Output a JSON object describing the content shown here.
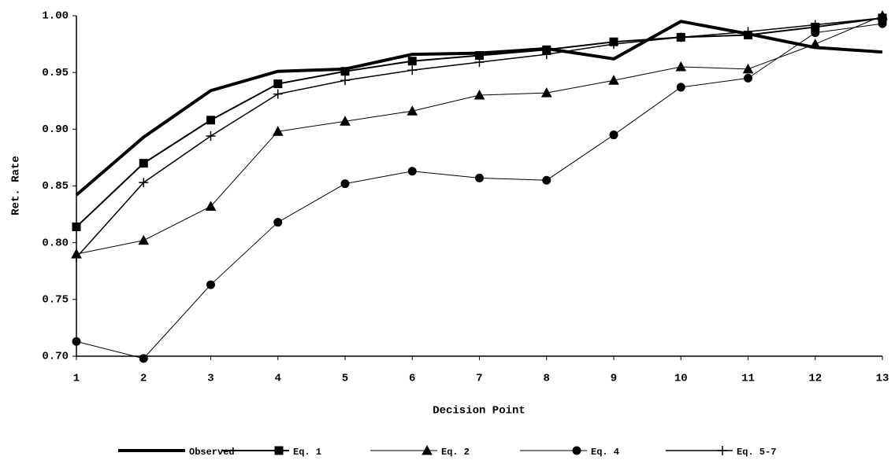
{
  "chart_data": {
    "type": "line",
    "x_label": "Decision Point",
    "y_label": "Ret. Rate",
    "x": [
      1,
      2,
      3,
      4,
      5,
      6,
      7,
      8,
      9,
      10,
      11,
      12,
      13
    ],
    "xlim": [
      1,
      13
    ],
    "xticks": [
      1,
      2,
      3,
      4,
      5,
      6,
      7,
      8,
      9,
      10,
      11,
      12,
      13
    ],
    "ylim": [
      0.7,
      1.0
    ],
    "yticks": [
      {
        "value": 0.7,
        "label": "0.70"
      },
      0.75,
      {
        "value": 0.8,
        "label": "0.80"
      },
      0.85,
      {
        "value": 0.9,
        "label": "0.90"
      },
      0.95,
      {
        "value": 1.0,
        "label": "1.00"
      }
    ],
    "grid": false,
    "legend": "bottom",
    "series": [
      {
        "name": "Observed",
        "color": "#000000",
        "marker": "none",
        "line_width": 4,
        "values": [
          0.842,
          0.893,
          0.934,
          0.951,
          0.953,
          0.966,
          0.967,
          0.971,
          0.962,
          0.995,
          0.984,
          0.972,
          0.968
        ]
      },
      {
        "name": "Eq. 1",
        "color": "#000000",
        "marker": "square",
        "line_width": 2,
        "values": [
          0.814,
          0.87,
          0.908,
          0.94,
          0.951,
          0.96,
          0.965,
          0.97,
          0.977,
          0.981,
          0.983,
          0.99,
          0.998
        ]
      },
      {
        "name": "Eq. 2",
        "color": "#000000",
        "marker": "triangle",
        "line_width": 1,
        "values": [
          0.79,
          0.802,
          0.832,
          0.898,
          0.907,
          0.916,
          0.93,
          0.932,
          0.943,
          0.955,
          0.953,
          0.975,
          1.0
        ]
      },
      {
        "name": "Eq. 4",
        "color": "#000000",
        "marker": "circle",
        "line_width": 1,
        "values": [
          0.713,
          0.698,
          0.763,
          0.818,
          0.852,
          0.863,
          0.857,
          0.855,
          0.895,
          0.937,
          0.945,
          0.985,
          0.993
        ]
      },
      {
        "name": "Eq. 5-7",
        "color": "#000000",
        "marker": "plus",
        "line_width": 1.5,
        "values": [
          0.787,
          0.853,
          0.894,
          0.931,
          0.943,
          0.952,
          0.959,
          0.966,
          0.975,
          0.981,
          0.986,
          0.992,
          0.998
        ]
      }
    ]
  }
}
